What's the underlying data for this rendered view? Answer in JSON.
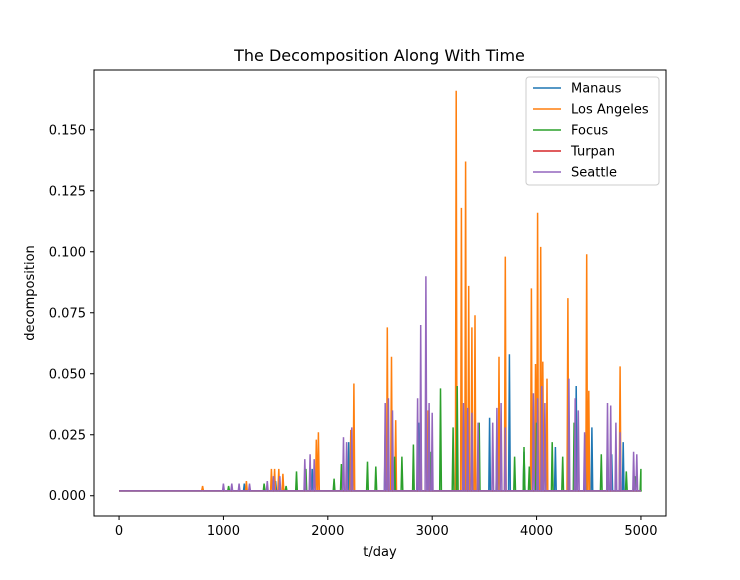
{
  "chart_data": {
    "type": "line",
    "title": "The Decomposition Along With Time",
    "xlabel": "t/day",
    "ylabel": "decomposition",
    "xlim": [
      -240,
      5240
    ],
    "ylim": [
      -0.0083,
      0.1745
    ],
    "xticks": [
      0,
      1000,
      2000,
      3000,
      4000,
      5000
    ],
    "xtick_labels": [
      "0",
      "1000",
      "2000",
      "3000",
      "4000",
      "5000"
    ],
    "yticks": [
      0.0,
      0.025,
      0.05,
      0.075,
      0.1,
      0.125,
      0.15
    ],
    "ytick_labels": [
      "0.000",
      "0.025",
      "0.050",
      "0.075",
      "0.100",
      "0.125",
      "0.150"
    ],
    "grid": false,
    "legend_position": "top-right",
    "baseline": 0.002,
    "series": [
      {
        "name": "Manaus",
        "color": "#1f77b4",
        "spikes": [
          [
            300,
            0.002
          ],
          [
            800,
            0.003
          ],
          [
            1200,
            0.005
          ],
          [
            1500,
            0.006
          ],
          [
            1850,
            0.011
          ],
          [
            2200,
            0.022
          ],
          [
            2550,
            0.025
          ],
          [
            2870,
            0.03
          ],
          [
            3330,
            0.035
          ],
          [
            3550,
            0.032
          ],
          [
            3740,
            0.058
          ],
          [
            3880,
            0.018
          ],
          [
            4010,
            0.03
          ],
          [
            4180,
            0.02
          ],
          [
            4380,
            0.045
          ],
          [
            4470,
            0.025
          ],
          [
            4530,
            0.028
          ],
          [
            4720,
            0.017
          ],
          [
            4830,
            0.022
          ]
        ]
      },
      {
        "name": "Los Angeles",
        "color": "#ff7f0e",
        "spikes": [
          [
            800,
            0.004
          ],
          [
            1220,
            0.006
          ],
          [
            1460,
            0.011
          ],
          [
            1490,
            0.011
          ],
          [
            1530,
            0.011
          ],
          [
            1570,
            0.009
          ],
          [
            1890,
            0.023
          ],
          [
            1910,
            0.026
          ],
          [
            2220,
            0.027
          ],
          [
            2250,
            0.046
          ],
          [
            2570,
            0.069
          ],
          [
            2610,
            0.057
          ],
          [
            2650,
            0.031
          ],
          [
            2890,
            0.04
          ],
          [
            2960,
            0.035
          ],
          [
            3230,
            0.166
          ],
          [
            3280,
            0.118
          ],
          [
            3320,
            0.137
          ],
          [
            3350,
            0.086
          ],
          [
            3380,
            0.069
          ],
          [
            3410,
            0.074
          ],
          [
            3640,
            0.057
          ],
          [
            3700,
            0.098
          ],
          [
            3950,
            0.085
          ],
          [
            3990,
            0.054
          ],
          [
            4010,
            0.116
          ],
          [
            4040,
            0.102
          ],
          [
            4060,
            0.055
          ],
          [
            4100,
            0.048
          ],
          [
            4300,
            0.081
          ],
          [
            4480,
            0.099
          ],
          [
            4500,
            0.043
          ],
          [
            4800,
            0.053
          ]
        ]
      },
      {
        "name": "Focus",
        "color": "#2ca02c",
        "spikes": [
          [
            450,
            0.002
          ],
          [
            1050,
            0.004
          ],
          [
            1390,
            0.005
          ],
          [
            1600,
            0.004
          ],
          [
            1700,
            0.01
          ],
          [
            1790,
            0.011
          ],
          [
            2060,
            0.007
          ],
          [
            2130,
            0.013
          ],
          [
            2380,
            0.014
          ],
          [
            2460,
            0.012
          ],
          [
            2640,
            0.016
          ],
          [
            2710,
            0.016
          ],
          [
            2820,
            0.021
          ],
          [
            2990,
            0.018
          ],
          [
            3080,
            0.044
          ],
          [
            3200,
            0.028
          ],
          [
            3240,
            0.045
          ],
          [
            3450,
            0.03
          ],
          [
            3620,
            0.024
          ],
          [
            3790,
            0.016
          ],
          [
            3880,
            0.02
          ],
          [
            3930,
            0.012
          ],
          [
            4000,
            0.03
          ],
          [
            4150,
            0.022
          ],
          [
            4250,
            0.016
          ],
          [
            4360,
            0.03
          ],
          [
            4620,
            0.017
          ],
          [
            4680,
            0.022
          ],
          [
            4860,
            0.01
          ],
          [
            4940,
            0.008
          ],
          [
            5000,
            0.011
          ]
        ]
      },
      {
        "name": "Turpan",
        "color": "#d62728",
        "spikes": [
          [
            2600,
            0.002
          ],
          [
            3300,
            0.003
          ],
          [
            4100,
            0.002
          ]
        ]
      },
      {
        "name": "Seattle",
        "color": "#9467bd",
        "spikes": [
          [
            300,
            0.002
          ],
          [
            700,
            0.002
          ],
          [
            1000,
            0.005
          ],
          [
            1080,
            0.005
          ],
          [
            1150,
            0.005
          ],
          [
            1250,
            0.005
          ],
          [
            1420,
            0.006
          ],
          [
            1480,
            0.008
          ],
          [
            1540,
            0.008
          ],
          [
            1780,
            0.015
          ],
          [
            1830,
            0.017
          ],
          [
            1870,
            0.015
          ],
          [
            2150,
            0.024
          ],
          [
            2180,
            0.022
          ],
          [
            2230,
            0.028
          ],
          [
            2550,
            0.038
          ],
          [
            2580,
            0.04
          ],
          [
            2620,
            0.035
          ],
          [
            2860,
            0.04
          ],
          [
            2890,
            0.07
          ],
          [
            2940,
            0.09
          ],
          [
            2970,
            0.038
          ],
          [
            3000,
            0.034
          ],
          [
            3300,
            0.038
          ],
          [
            3340,
            0.036
          ],
          [
            3380,
            0.034
          ],
          [
            3440,
            0.03
          ],
          [
            3580,
            0.03
          ],
          [
            3620,
            0.036
          ],
          [
            3660,
            0.038
          ],
          [
            3700,
            0.028
          ],
          [
            3970,
            0.042
          ],
          [
            4010,
            0.04
          ],
          [
            4050,
            0.045
          ],
          [
            4080,
            0.038
          ],
          [
            4310,
            0.048
          ],
          [
            4370,
            0.04
          ],
          [
            4400,
            0.035
          ],
          [
            4460,
            0.026
          ],
          [
            4680,
            0.038
          ],
          [
            4710,
            0.037
          ],
          [
            4760,
            0.03
          ],
          [
            4800,
            0.026
          ],
          [
            4930,
            0.018
          ],
          [
            4960,
            0.017
          ]
        ]
      }
    ]
  }
}
